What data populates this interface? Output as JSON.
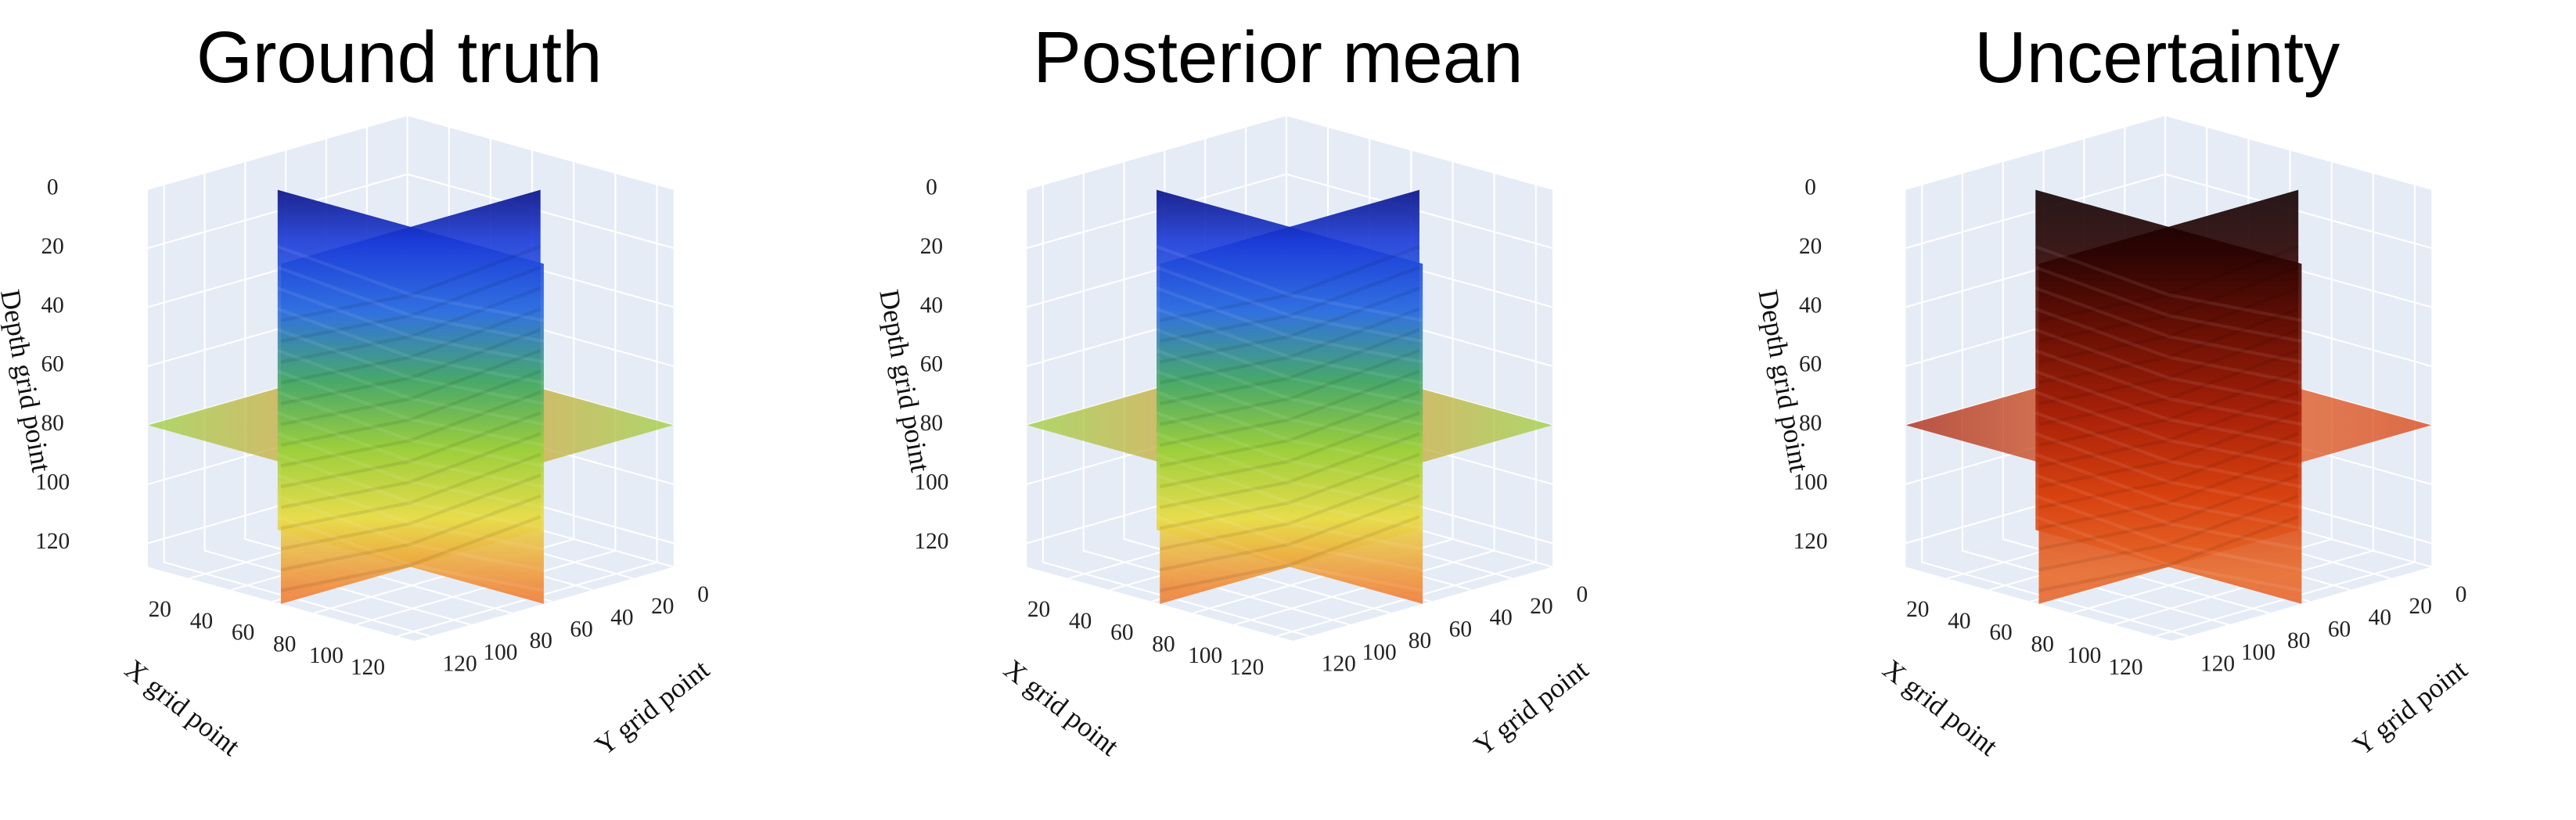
{
  "chart_data": [
    {
      "type": "volume",
      "title": "Ground truth",
      "xlabel": "X grid point",
      "ylabel": "Y grid point",
      "zlabel": "Depth grid point",
      "xlim": [
        0,
        128
      ],
      "ylim": [
        0,
        128
      ],
      "zlim": [
        0,
        128
      ],
      "xticks": [
        20,
        40,
        60,
        80,
        100,
        120
      ],
      "yticks": [
        0,
        20,
        40,
        60,
        80,
        100,
        120
      ],
      "zticks": [
        0,
        20,
        40,
        60,
        80,
        100,
        120
      ],
      "zreversed": true,
      "grid": true,
      "colorscale": [
        "#00006a",
        "#1a3ad8",
        "#2f6fe0",
        "#46a86a",
        "#9ccf3c",
        "#e8dc4a",
        "#f08a3a",
        "#e8502a"
      ]
    },
    {
      "type": "volume",
      "title": "Posterior mean",
      "xlabel": "X grid point",
      "ylabel": "Y grid point",
      "zlabel": "Depth grid point",
      "xlim": [
        0,
        128
      ],
      "ylim": [
        0,
        128
      ],
      "zlim": [
        0,
        128
      ],
      "xticks": [
        20,
        40,
        60,
        80,
        100,
        120
      ],
      "yticks": [
        0,
        20,
        40,
        60,
        80,
        100,
        120
      ],
      "zticks": [
        0,
        20,
        40,
        60,
        80,
        100,
        120
      ],
      "zreversed": true,
      "grid": true,
      "colorscale": [
        "#00006a",
        "#1a3ad8",
        "#2f6fe0",
        "#46a86a",
        "#9ccf3c",
        "#e8dc4a",
        "#f08a3a",
        "#e8502a"
      ]
    },
    {
      "type": "volume",
      "title": "Uncertainty",
      "xlabel": "X grid point",
      "ylabel": "Y grid point",
      "zlabel": "Depth grid point",
      "xlim": [
        0,
        128
      ],
      "ylim": [
        0,
        128
      ],
      "zlim": [
        0,
        128
      ],
      "xticks": [
        20,
        40,
        60,
        80,
        100,
        120
      ],
      "yticks": [
        0,
        20,
        40,
        60,
        80,
        100,
        120
      ],
      "zticks": [
        0,
        20,
        40,
        60,
        80,
        100,
        120
      ],
      "zreversed": true,
      "grid": true,
      "colorscale": [
        "#0a0000",
        "#2a0200",
        "#6a0e02",
        "#a82008",
        "#d8400e",
        "#e86a2a",
        "#e8603a"
      ]
    }
  ]
}
